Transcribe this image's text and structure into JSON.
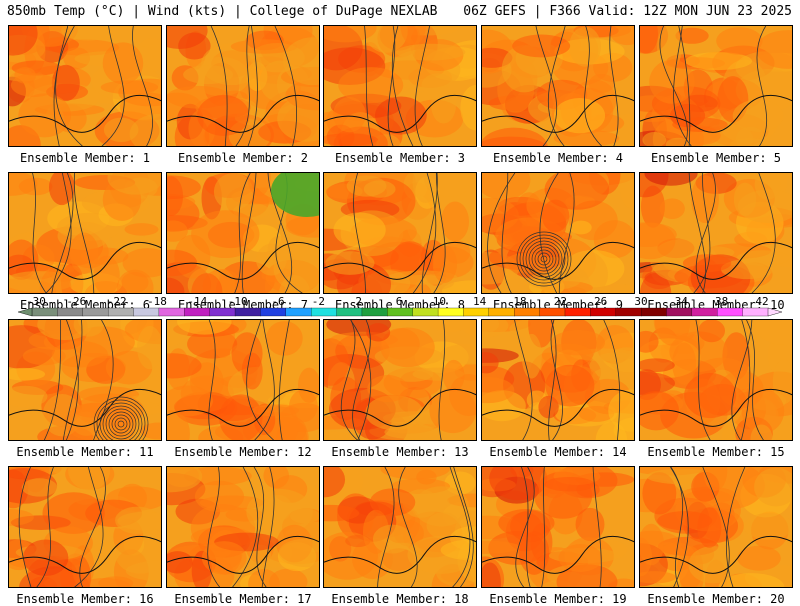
{
  "header": {
    "left": "850mb Temp (°C) | Wind (kts) | College of DuPage NEXLAB",
    "right": "06Z GEFS | F366 Valid: 12Z MON JUN 23 2025"
  },
  "chart_data": {
    "type": "heatmap",
    "title": "850mb Temp (°C) | Wind (kts) | College of DuPage NEXLAB",
    "subtitle": "06Z GEFS | F366 Valid: 12Z MON JUN 23 2025",
    "layout": "4 rows x 5 columns of map panels",
    "panels": [
      {
        "label": "Ensemble Member: 1"
      },
      {
        "label": "Ensemble Member: 2"
      },
      {
        "label": "Ensemble Member: 3"
      },
      {
        "label": "Ensemble Member: 4"
      },
      {
        "label": "Ensemble Member: 5"
      },
      {
        "label": "Ensemble Member: 6"
      },
      {
        "label": "Ensemble Member: 7"
      },
      {
        "label": "Ensemble Member: 8"
      },
      {
        "label": "Ensemble Member: 9"
      },
      {
        "label": "Ensemble Member: 10"
      },
      {
        "label": "Ensemble Member: 11"
      },
      {
        "label": "Ensemble Member: 12"
      },
      {
        "label": "Ensemble Member: 13"
      },
      {
        "label": "Ensemble Member: 14"
      },
      {
        "label": "Ensemble Member: 15"
      },
      {
        "label": "Ensemble Member: 16"
      },
      {
        "label": "Ensemble Member: 17"
      },
      {
        "label": "Ensemble Member: 18"
      },
      {
        "label": "Ensemble Member: 19"
      },
      {
        "label": "Ensemble Member: 20"
      }
    ],
    "colorbar": {
      "ticks": [
        "-30",
        "-26",
        "-22",
        "-18",
        "-14",
        "-10",
        "-6",
        "-2",
        "2",
        "6",
        "10",
        "14",
        "18",
        "22",
        "26",
        "30",
        "34",
        "38",
        "42"
      ],
      "colors": [
        "#7a8f7a",
        "#8a8a8a",
        "#9a9a9a",
        "#b0b0b0",
        "#c8c8e0",
        "#e066e0",
        "#c020c0",
        "#8030d0",
        "#4020a0",
        "#2040e0",
        "#20a0ff",
        "#20e0e0",
        "#20c080",
        "#20a040",
        "#60c020",
        "#c0e020",
        "#ffff20",
        "#ffd000",
        "#ffb000",
        "#ff8000",
        "#ff5000",
        "#ff2000",
        "#d00000",
        "#a00000",
        "#800000",
        "#a01060",
        "#d020a0",
        "#ff50ff",
        "#ffb0ff"
      ]
    }
  }
}
